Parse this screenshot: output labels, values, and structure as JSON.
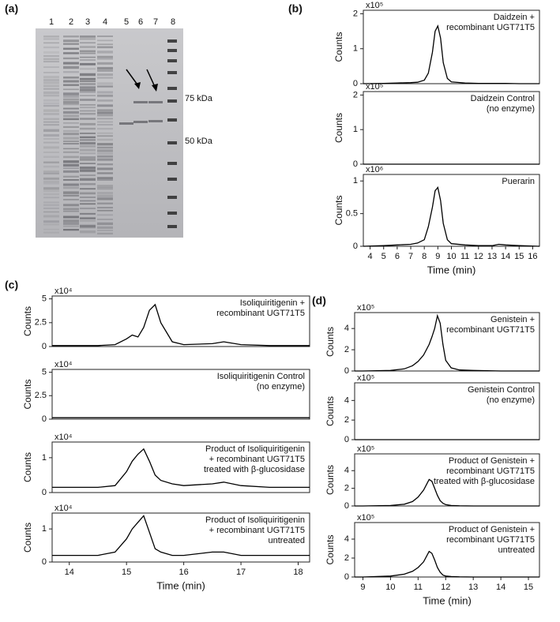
{
  "figure": {
    "panel_labels": [
      "(a)",
      "(b)",
      "(c)",
      "(d)"
    ],
    "gel": {
      "lanes": [
        "1",
        "2",
        "3",
        "4",
        "5",
        "6",
        "7",
        "8"
      ],
      "markers": [
        "75 kDa",
        "50 kDa"
      ]
    }
  },
  "chart_data": [
    {
      "type": "line",
      "annotation": [
        "Daidzein +",
        "recombinant UGT71T5"
      ],
      "multiplier": "x10⁵",
      "ylabel": "Counts",
      "color": "#000000",
      "xlim": [
        3.5,
        16.5
      ],
      "ylim": [
        0,
        2.1
      ],
      "yticks": [
        0,
        1,
        2
      ],
      "x": [
        3.5,
        5,
        6,
        7,
        7.5,
        8,
        8.3,
        8.6,
        8.8,
        9,
        9.2,
        9.4,
        9.7,
        10,
        11,
        12,
        13,
        13.5,
        14,
        15,
        16.5
      ],
      "values": [
        0,
        0.01,
        0.02,
        0.03,
        0.04,
        0.1,
        0.3,
        0.9,
        1.5,
        1.65,
        1.3,
        0.6,
        0.15,
        0.05,
        0.02,
        0.01,
        0.01,
        0.01,
        0.01,
        0,
        0
      ]
    },
    {
      "type": "line",
      "annotation": [
        "Daidzein Control",
        "(no enzyme)"
      ],
      "multiplier": "x10⁵",
      "ylabel": "Counts",
      "color": "#000000",
      "xlim": [
        3.5,
        16.5
      ],
      "ylim": [
        0,
        2.1
      ],
      "yticks": [
        0,
        1,
        2
      ],
      "x": [
        3.5,
        5,
        6,
        7,
        7.5,
        8,
        8.3,
        8.6,
        8.8,
        9,
        9.2,
        9.4,
        9.7,
        10,
        11,
        12,
        13,
        13.5,
        14,
        15,
        16.5
      ],
      "values": [
        0,
        0,
        0,
        0,
        0,
        0,
        0,
        0,
        0,
        0,
        0,
        0,
        0,
        0,
        0,
        0,
        0,
        0,
        0,
        0,
        0
      ]
    },
    {
      "type": "line",
      "annotation": [
        "Puerarin"
      ],
      "multiplier": "x10⁶",
      "ylabel": "Counts",
      "color": "#000000",
      "xlim": [
        3.5,
        16.5
      ],
      "ylim": [
        0,
        1.1
      ],
      "yticks": [
        0,
        0.5,
        1
      ],
      "xticks": [
        4,
        5,
        6,
        7,
        8,
        9,
        10,
        11,
        12,
        13,
        14,
        15,
        16
      ],
      "xlabel": "Time (min)",
      "x": [
        3.5,
        5,
        6,
        7,
        7.5,
        8,
        8.3,
        8.6,
        8.8,
        9,
        9.2,
        9.4,
        9.7,
        10,
        11,
        12,
        13,
        13.5,
        14,
        15,
        16.5
      ],
      "values": [
        0,
        0.01,
        0.02,
        0.03,
        0.05,
        0.1,
        0.3,
        0.6,
        0.85,
        0.9,
        0.7,
        0.35,
        0.1,
        0.04,
        0.02,
        0.01,
        0.01,
        0.03,
        0.02,
        0.01,
        0
      ]
    },
    {
      "type": "line",
      "annotation": [
        "Isoliquiritigenin +",
        "recombinant UGT71T5"
      ],
      "multiplier": "x10⁴",
      "ylabel": "Counts",
      "color": "#000000",
      "xlim": [
        13.7,
        18.2
      ],
      "ylim": [
        0,
        5.3
      ],
      "yticks": [
        0,
        2.5,
        5
      ],
      "x": [
        13.7,
        14,
        14.5,
        14.8,
        15,
        15.1,
        15.2,
        15.3,
        15.4,
        15.5,
        15.6,
        15.8,
        16,
        16.5,
        16.7,
        17,
        17.5,
        18.2
      ],
      "values": [
        0.1,
        0.1,
        0.1,
        0.2,
        0.8,
        1.2,
        1.0,
        2.0,
        3.8,
        4.4,
        2.5,
        0.5,
        0.2,
        0.3,
        0.5,
        0.2,
        0.1,
        0.1
      ]
    },
    {
      "type": "line",
      "annotation": [
        "Isoliquiritigenin Control",
        "(no enzyme)"
      ],
      "multiplier": "x10⁴",
      "ylabel": "Counts",
      "color": "#000000",
      "xlim": [
        13.7,
        18.2
      ],
      "ylim": [
        0,
        5.3
      ],
      "yticks": [
        0,
        2.5,
        5
      ],
      "x": [
        13.7,
        14,
        14.5,
        14.8,
        15,
        15.1,
        15.2,
        15.3,
        15.4,
        15.5,
        15.6,
        15.8,
        16,
        16.5,
        16.7,
        17,
        17.5,
        18.2
      ],
      "values": [
        0.15,
        0.15,
        0.15,
        0.15,
        0.15,
        0.15,
        0.15,
        0.15,
        0.15,
        0.15,
        0.15,
        0.15,
        0.15,
        0.15,
        0.15,
        0.15,
        0.15,
        0.15
      ]
    },
    {
      "type": "line",
      "annotation": [
        "Product of Isoliquiritigenin",
        "+ recombinant UGT71T5",
        "treated with β-glucosidase"
      ],
      "multiplier": "x10⁴",
      "ylabel": "Counts",
      "color": "#000000",
      "xlim": [
        13.7,
        18.2
      ],
      "ylim": [
        0,
        1.45
      ],
      "yticks": [
        0,
        1
      ],
      "x": [
        13.7,
        14,
        14.5,
        14.8,
        15,
        15.1,
        15.2,
        15.3,
        15.4,
        15.5,
        15.6,
        15.8,
        16,
        16.5,
        16.7,
        17,
        17.5,
        18.2
      ],
      "values": [
        0.15,
        0.15,
        0.15,
        0.2,
        0.6,
        0.9,
        1.1,
        1.25,
        0.9,
        0.5,
        0.35,
        0.25,
        0.2,
        0.25,
        0.3,
        0.2,
        0.15,
        0.15
      ]
    },
    {
      "type": "line",
      "annotation": [
        "Product of Isoliquiritigenin",
        "+ recombinant UGT71T5",
        "untreated"
      ],
      "multiplier": "x10⁴",
      "ylabel": "Counts",
      "color": "#000000",
      "xlim": [
        13.7,
        18.2
      ],
      "ylim": [
        0,
        1.48
      ],
      "yticks": [
        0,
        1
      ],
      "xticks": [
        14,
        15,
        16,
        17,
        18
      ],
      "xlabel": "Time (min)",
      "x": [
        13.7,
        14,
        14.5,
        14.8,
        15,
        15.1,
        15.2,
        15.3,
        15.4,
        15.5,
        15.6,
        15.8,
        16,
        16.5,
        16.7,
        17,
        17.5,
        18.2
      ],
      "values": [
        0.2,
        0.2,
        0.2,
        0.3,
        0.7,
        1.0,
        1.2,
        1.4,
        0.9,
        0.4,
        0.3,
        0.2,
        0.2,
        0.3,
        0.3,
        0.2,
        0.2,
        0.2
      ]
    },
    {
      "type": "line",
      "annotation": [
        "Genistein +",
        "recombinant UGT71T5"
      ],
      "multiplier": "x10⁵",
      "ylabel": "Counts",
      "color": "#000000",
      "xlim": [
        8.7,
        15.4
      ],
      "ylim": [
        0,
        5.5
      ],
      "yticks": [
        0,
        2,
        4
      ],
      "x": [
        8.7,
        9,
        10,
        10.5,
        10.8,
        11,
        11.2,
        11.4,
        11.5,
        11.6,
        11.7,
        11.8,
        11.9,
        12,
        12.2,
        12.5,
        13,
        14,
        15.4
      ],
      "values": [
        0,
        0,
        0.05,
        0.2,
        0.5,
        0.9,
        1.5,
        2.5,
        3.2,
        4.0,
        5.2,
        4.5,
        2.5,
        1.0,
        0.3,
        0.1,
        0.05,
        0,
        0
      ]
    },
    {
      "type": "line",
      "annotation": [
        "Genistein Control",
        "(no enzyme)"
      ],
      "multiplier": "x10⁵",
      "ylabel": "Counts",
      "color": "#000000",
      "xlim": [
        8.7,
        15.4
      ],
      "ylim": [
        0,
        5.8
      ],
      "yticks": [
        0,
        2,
        4
      ],
      "x": [
        8.7,
        9,
        10,
        10.5,
        10.8,
        11,
        11.2,
        11.4,
        11.5,
        11.6,
        11.7,
        11.8,
        11.9,
        12,
        12.2,
        12.5,
        13,
        14,
        15.4
      ],
      "values": [
        0,
        0,
        0,
        0,
        0,
        0,
        0,
        0,
        0,
        0,
        0,
        0,
        0,
        0,
        0,
        0,
        0,
        0,
        0
      ]
    },
    {
      "type": "line",
      "annotation": [
        "Product of Genistein +",
        "recombinant UGT71T5",
        "treated with β-glucosidase"
      ],
      "multiplier": "x10⁵",
      "ylabel": "Counts",
      "color": "#000000",
      "xlim": [
        8.7,
        15.4
      ],
      "ylim": [
        0,
        5.9
      ],
      "yticks": [
        0,
        2,
        4
      ],
      "x": [
        8.7,
        9,
        10,
        10.5,
        10.8,
        11,
        11.2,
        11.4,
        11.5,
        11.6,
        11.7,
        11.8,
        11.9,
        12,
        12.2,
        12.5,
        13,
        14,
        15.4
      ],
      "values": [
        0,
        0,
        0.05,
        0.2,
        0.5,
        1.0,
        1.8,
        3.0,
        2.8,
        2.0,
        1.2,
        0.6,
        0.3,
        0.15,
        0.05,
        0.02,
        0,
        0,
        0
      ]
    },
    {
      "type": "line",
      "annotation": [
        "Product of Genistein +",
        "recombinant UGT71T5",
        "untreated"
      ],
      "multiplier": "x10⁵",
      "ylabel": "Counts",
      "color": "#000000",
      "xlim": [
        8.7,
        15.4
      ],
      "ylim": [
        0,
        5.75
      ],
      "yticks": [
        0,
        2,
        4
      ],
      "xticks": [
        9,
        10,
        11,
        12,
        13,
        14,
        15
      ],
      "xlabel": "Time (min)",
      "x": [
        8.7,
        9,
        10,
        10.5,
        10.8,
        11,
        11.2,
        11.4,
        11.5,
        11.6,
        11.7,
        11.8,
        11.9,
        12,
        12.2,
        12.5,
        13,
        14,
        15.4
      ],
      "values": [
        0,
        0,
        0.1,
        0.3,
        0.6,
        1.0,
        1.6,
        2.7,
        2.5,
        1.8,
        1.0,
        0.5,
        0.2,
        0.1,
        0.05,
        0.02,
        0,
        0,
        0
      ]
    }
  ]
}
